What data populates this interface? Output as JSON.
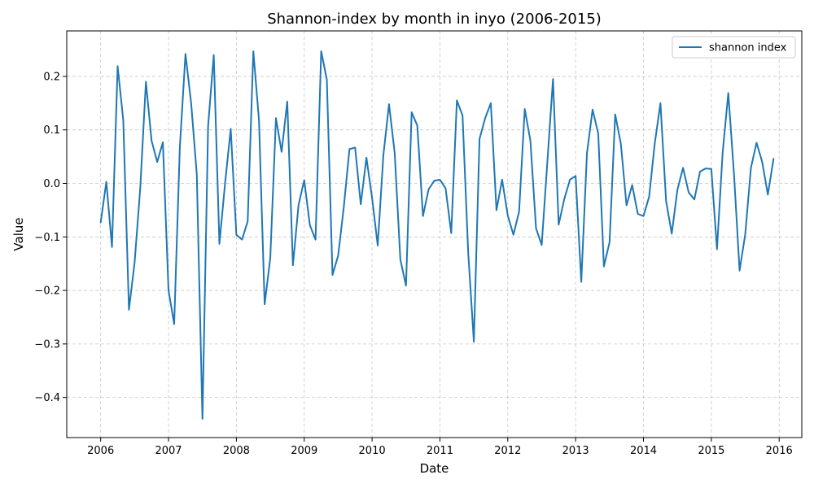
{
  "chart_data": {
    "type": "line",
    "title": "Shannon-index by month in inyo (2006-2015)",
    "xlabel": "Date",
    "ylabel": "Value",
    "xlim": [
      "2005-07",
      "2016-05"
    ],
    "ylim": [
      -0.475,
      0.285
    ],
    "x_ticks": [
      "2006",
      "2007",
      "2008",
      "2009",
      "2010",
      "2011",
      "2012",
      "2013",
      "2014",
      "2015",
      "2016"
    ],
    "y_ticks": [
      "0.2",
      "0.1",
      "0.0",
      "−0.1",
      "−0.2",
      "−0.3",
      "−0.4"
    ],
    "y_tick_values": [
      0.2,
      0.1,
      0.0,
      -0.1,
      -0.2,
      -0.3,
      -0.4
    ],
    "grid": true,
    "legend_position": "top-right",
    "series": [
      {
        "name": "shannon index",
        "color": "#1f77b4",
        "x": [
          "2006-01",
          "2006-02",
          "2006-03",
          "2006-04",
          "2006-05",
          "2006-06",
          "2006-07",
          "2006-08",
          "2006-09",
          "2006-10",
          "2006-11",
          "2006-12",
          "2007-01",
          "2007-02",
          "2007-03",
          "2007-04",
          "2007-05",
          "2007-06",
          "2007-07",
          "2007-08",
          "2007-09",
          "2007-10",
          "2007-11",
          "2007-12",
          "2008-01",
          "2008-02",
          "2008-03",
          "2008-04",
          "2008-05",
          "2008-06",
          "2008-07",
          "2008-08",
          "2008-09",
          "2008-10",
          "2008-11",
          "2008-12",
          "2009-01",
          "2009-02",
          "2009-03",
          "2009-04",
          "2009-05",
          "2009-06",
          "2009-07",
          "2009-08",
          "2009-09",
          "2009-10",
          "2009-11",
          "2009-12",
          "2010-01",
          "2010-02",
          "2010-03",
          "2010-04",
          "2010-05",
          "2010-06",
          "2010-07",
          "2010-08",
          "2010-09",
          "2010-10",
          "2010-11",
          "2010-12",
          "2011-01",
          "2011-02",
          "2011-03",
          "2011-04",
          "2011-05",
          "2011-06",
          "2011-07",
          "2011-08",
          "2011-09",
          "2011-10",
          "2011-11",
          "2011-12",
          "2012-01",
          "2012-02",
          "2012-03",
          "2012-04",
          "2012-05",
          "2012-06",
          "2012-07",
          "2012-08",
          "2012-09",
          "2012-10",
          "2012-11",
          "2012-12",
          "2013-01",
          "2013-02",
          "2013-03",
          "2013-04",
          "2013-05",
          "2013-06",
          "2013-07",
          "2013-08",
          "2013-09",
          "2013-10",
          "2013-11",
          "2013-12",
          "2014-01",
          "2014-02",
          "2014-03",
          "2014-04",
          "2014-05",
          "2014-06",
          "2014-07",
          "2014-08",
          "2014-09",
          "2014-10",
          "2014-11",
          "2014-12",
          "2015-01",
          "2015-02",
          "2015-03",
          "2015-04",
          "2015-05",
          "2015-06",
          "2015-07",
          "2015-08",
          "2015-09",
          "2015-10",
          "2015-11",
          "2015-12"
        ],
        "values": [
          -0.073,
          0.003,
          -0.119,
          0.219,
          0.118,
          -0.236,
          -0.148,
          -0.009,
          0.19,
          0.08,
          0.04,
          0.077,
          -0.2,
          -0.263,
          0.067,
          0.242,
          0.15,
          0.017,
          -0.44,
          0.107,
          0.24,
          -0.113,
          0.0,
          0.102,
          -0.096,
          -0.105,
          -0.071,
          0.247,
          0.118,
          -0.226,
          -0.139,
          0.122,
          0.059,
          0.153,
          -0.153,
          -0.04,
          0.006,
          -0.078,
          -0.105,
          0.247,
          0.194,
          -0.171,
          -0.135,
          -0.044,
          0.064,
          0.067,
          -0.039,
          0.048,
          -0.027,
          -0.116,
          0.053,
          0.148,
          0.057,
          -0.142,
          -0.191,
          0.133,
          0.108,
          -0.061,
          -0.011,
          0.005,
          0.007,
          -0.009,
          -0.093,
          0.155,
          0.127,
          -0.129,
          -0.296,
          0.083,
          0.122,
          0.15,
          -0.05,
          0.007,
          -0.06,
          -0.096,
          -0.053,
          0.139,
          0.08,
          -0.084,
          -0.115,
          0.04,
          0.195,
          -0.077,
          -0.029,
          0.007,
          0.014,
          -0.184,
          0.056,
          0.138,
          0.093,
          -0.155,
          -0.11,
          0.129,
          0.074,
          -0.041,
          -0.003,
          -0.057,
          -0.061,
          -0.025,
          0.075,
          0.15,
          -0.033,
          -0.094,
          -0.012,
          0.029,
          -0.017,
          -0.03,
          0.022,
          0.028,
          0.027,
          -0.123,
          0.057,
          0.169,
          0.019,
          -0.163,
          -0.095,
          0.029,
          0.076,
          0.04,
          -0.021,
          0.046
        ]
      }
    ]
  }
}
